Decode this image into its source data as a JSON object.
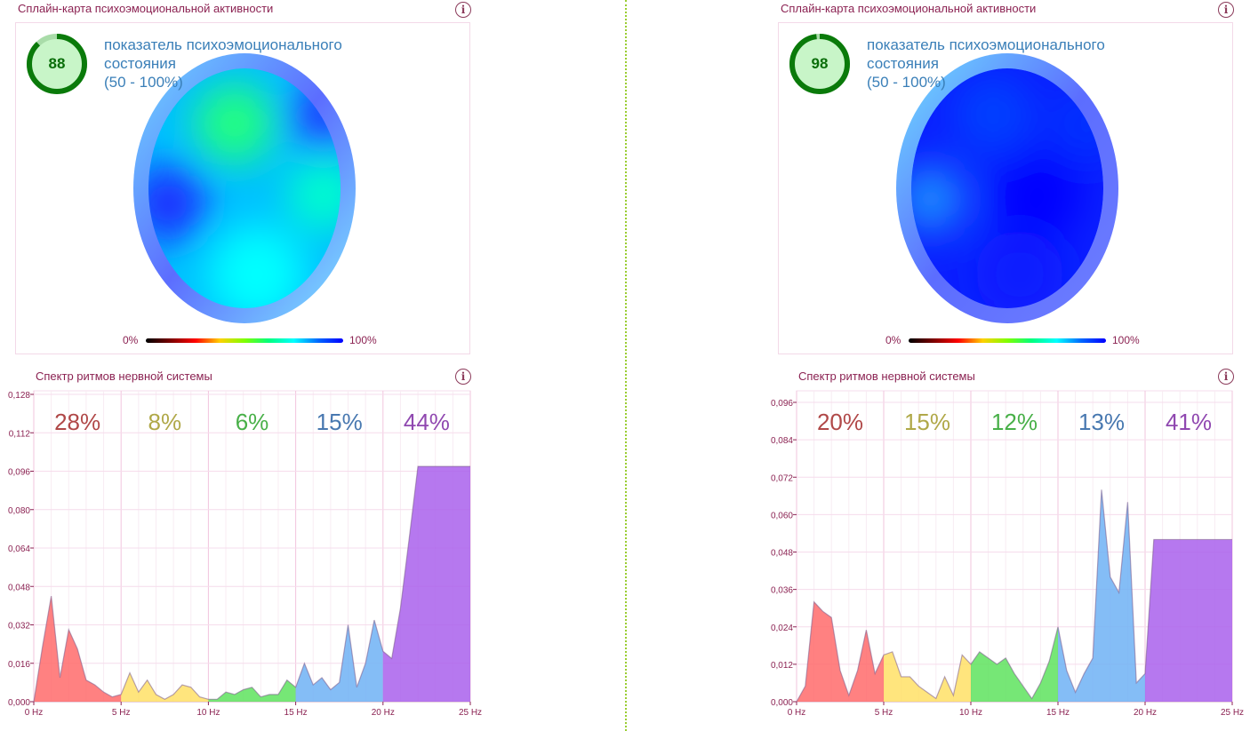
{
  "panels": [
    {
      "map_title": "Сплайн-карта психоэмоциональной активности",
      "gauge_value": "88",
      "gauge_fraction": 0.88,
      "indicator_line1": "показатель психоэмоционального",
      "indicator_line2": "состояния",
      "indicator_line3": "(50 - 100%)",
      "scale_min": "0%",
      "scale_max": "100%",
      "spectrum_title": "Спектр ритмов нервной системы",
      "head_colors": [
        "#00c0ff",
        "#20ff80",
        "#2040ff",
        "#00ffcc",
        "#00ffff",
        "#1a33ff"
      ]
    },
    {
      "map_title": "Сплайн-карта психоэмоциональной активности",
      "gauge_value": "98",
      "gauge_fraction": 0.98,
      "indicator_line1": "показатель психоэмоционального",
      "indicator_line2": "состояния",
      "indicator_line3": "(50 - 100%)",
      "scale_min": "0%",
      "scale_max": "100%",
      "spectrum_title": "Спектр ритмов нервной системы",
      "head_colors": [
        "#0a1fff",
        "#0040ff",
        "#0033ff",
        "#1a8cff",
        "#0000ff",
        "#0a1aff"
      ]
    }
  ],
  "chart_data": [
    {
      "type": "area",
      "title": "Спектр ритмов нервной системы",
      "x_tick_labels": [
        "0 Hz",
        "5 Hz",
        "10 Hz",
        "15 Hz",
        "20 Hz",
        "25 Hz"
      ],
      "y_tick_labels": [
        "0,000",
        "0,016",
        "0,032",
        "0,048",
        "0,064",
        "0,080",
        "0,096",
        "0,112",
        "0,128"
      ],
      "xlim": [
        0,
        25
      ],
      "ylim": [
        0,
        0.128
      ],
      "grid": true,
      "band_colors": [
        "#ff6b6b",
        "#ffe066",
        "#5ee35e",
        "#6fb2f5",
        "#a960ec"
      ],
      "band_label_colors": [
        "#b04848",
        "#b0a848",
        "#48b048",
        "#4878b0",
        "#9048b0"
      ],
      "band_ranges": [
        [
          0,
          5
        ],
        [
          5,
          10
        ],
        [
          10,
          15
        ],
        [
          15,
          20
        ],
        [
          20,
          25
        ]
      ],
      "band_percentages": [
        "28%",
        "8%",
        "6%",
        "15%",
        "44%"
      ],
      "x": [
        0,
        0.5,
        1,
        1.5,
        2,
        2.5,
        3,
        3.5,
        4,
        4.5,
        5,
        5.5,
        6,
        6.5,
        7,
        7.5,
        8,
        8.5,
        9,
        9.5,
        10,
        10.5,
        11,
        11.5,
        12,
        12.5,
        13,
        13.5,
        14,
        14.5,
        15,
        15.5,
        16,
        16.5,
        17,
        17.5,
        18,
        18.5,
        19,
        19.5,
        20,
        20.5,
        21,
        21.5,
        22,
        22.5,
        23,
        23.5,
        24,
        24.5,
        25
      ],
      "y": [
        0,
        0.023,
        0.044,
        0.01,
        0.03,
        0.022,
        0.009,
        0.007,
        0.004,
        0.002,
        0.003,
        0.012,
        0.004,
        0.009,
        0.003,
        0.001,
        0.003,
        0.007,
        0.006,
        0.002,
        0.001,
        0.001,
        0.004,
        0.003,
        0.005,
        0.006,
        0.002,
        0.003,
        0.003,
        0.009,
        0.006,
        0.016,
        0.007,
        0.01,
        0.005,
        0.008,
        0.032,
        0.006,
        0.016,
        0.034,
        0.021,
        0.018,
        0.039,
        0.068,
        0.098,
        0.098,
        0.098,
        0.098,
        0.098,
        0.098,
        0.098
      ]
    },
    {
      "type": "area",
      "title": "Спектр ритмов нервной системы",
      "x_tick_labels": [
        "0 Hz",
        "5 Hz",
        "10 Hz",
        "15 Hz",
        "20 Hz",
        "25 Hz"
      ],
      "y_tick_labels": [
        "0,000",
        "0,012",
        "0,024",
        "0,036",
        "0,048",
        "0,060",
        "0,072",
        "0,084",
        "0,096"
      ],
      "xlim": [
        0,
        25
      ],
      "ylim": [
        0,
        0.096
      ],
      "grid": true,
      "band_colors": [
        "#ff6b6b",
        "#ffe066",
        "#5ee35e",
        "#6fb2f5",
        "#a960ec"
      ],
      "band_label_colors": [
        "#b04848",
        "#b0a848",
        "#48b048",
        "#4878b0",
        "#9048b0"
      ],
      "band_ranges": [
        [
          0,
          5
        ],
        [
          5,
          10
        ],
        [
          10,
          15
        ],
        [
          15,
          20
        ],
        [
          20,
          25
        ]
      ],
      "band_percentages": [
        "20%",
        "15%",
        "12%",
        "13%",
        "41%"
      ],
      "x": [
        0,
        0.5,
        1,
        1.5,
        2,
        2.5,
        3,
        3.5,
        4,
        4.5,
        5,
        5.5,
        6,
        6.5,
        7,
        7.5,
        8,
        8.5,
        9,
        9.5,
        10,
        10.5,
        11,
        11.5,
        12,
        12.5,
        13,
        13.5,
        14,
        14.5,
        15,
        15.5,
        16,
        16.5,
        17,
        17.5,
        18,
        18.5,
        19,
        19.5,
        20,
        20.5,
        21,
        21.5,
        22,
        22.5,
        23,
        23.5,
        24,
        24.5,
        25
      ],
      "y": [
        0,
        0.005,
        0.032,
        0.029,
        0.027,
        0.01,
        0.002,
        0.01,
        0.023,
        0.009,
        0.015,
        0.016,
        0.008,
        0.008,
        0.005,
        0.003,
        0.001,
        0.008,
        0.002,
        0.015,
        0.012,
        0.016,
        0.014,
        0.012,
        0.014,
        0.009,
        0.005,
        0.001,
        0.006,
        0.013,
        0.024,
        0.01,
        0.003,
        0.009,
        0.014,
        0.068,
        0.04,
        0.035,
        0.064,
        0.006,
        0.009,
        0.052,
        0.052,
        0.052,
        0.052,
        0.052,
        0.052,
        0.052,
        0.052,
        0.052,
        0.052
      ]
    }
  ]
}
